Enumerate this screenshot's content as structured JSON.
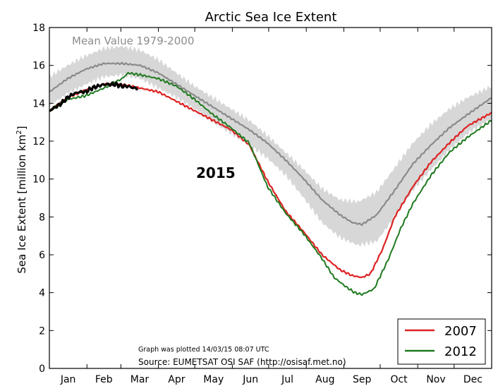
{
  "chart_data": {
    "type": "line",
    "title": "Arctic Sea Ice Extent",
    "ylabel": "Sea Ice Extent [million km",
    "ylabel_sup": "2",
    "ylabel_close": "]",
    "xlabel": "",
    "ylim": [
      0,
      18
    ],
    "yticks": [
      0,
      2,
      4,
      6,
      8,
      10,
      12,
      14,
      16,
      18
    ],
    "xlim": [
      0,
      365
    ],
    "months": [
      "Jan",
      "Feb",
      "Mar",
      "Apr",
      "May",
      "Jun",
      "Jul",
      "Aug",
      "Sep",
      "Oct",
      "Nov",
      "Dec"
    ],
    "grid": false,
    "legend_position": "bottom-right",
    "colors": {
      "band": "#d7d7d7",
      "mean": "#8a8a8a",
      "y2007": "#dd2222",
      "y2012": "#1f7a1f",
      "y2015": "#000000"
    },
    "annotations": {
      "mean_label": "Mean Value 1979-2000",
      "year_label": "2015",
      "plotted": "Graph was plotted 14/03/15 08:07 UTC",
      "source": "Source: EUMETSAT OSI SAF (http://osisaf.met.no)"
    },
    "legend": [
      {
        "label": "2007",
        "color": "#dd2222"
      },
      {
        "label": "2012",
        "color": "#1f7a1f"
      }
    ],
    "band_upper": {
      "x": [
        0,
        15,
        30,
        45,
        60,
        75,
        90,
        105,
        120,
        135,
        150,
        165,
        180,
        195,
        210,
        225,
        240,
        255,
        270,
        285,
        300,
        315,
        330,
        345,
        365
      ],
      "y": [
        15.4,
        16.0,
        16.5,
        16.9,
        17.0,
        16.8,
        16.3,
        15.6,
        14.9,
        14.3,
        13.7,
        13.1,
        12.3,
        11.4,
        10.5,
        9.5,
        8.9,
        8.8,
        9.3,
        10.6,
        11.9,
        12.9,
        13.7,
        14.3,
        14.9
      ]
    },
    "band_lower": {
      "x": [
        0,
        15,
        30,
        45,
        60,
        75,
        90,
        105,
        120,
        135,
        150,
        165,
        180,
        195,
        210,
        225,
        240,
        255,
        270,
        285,
        300,
        315,
        330,
        345,
        365
      ],
      "y": [
        13.9,
        14.5,
        15.0,
        15.4,
        15.5,
        15.3,
        14.8,
        14.3,
        13.7,
        13.0,
        12.4,
        11.8,
        11.1,
        10.2,
        9.0,
        7.7,
        6.9,
        6.5,
        6.7,
        8.0,
        9.4,
        10.5,
        11.5,
        12.4,
        13.2
      ]
    },
    "series": [
      {
        "name": "Mean Value 1979-2000",
        "key": "mean",
        "x": [
          0,
          15,
          30,
          45,
          60,
          75,
          90,
          105,
          120,
          135,
          150,
          165,
          180,
          195,
          210,
          225,
          240,
          250,
          258,
          270,
          285,
          300,
          315,
          330,
          345,
          365
        ],
        "y": [
          14.6,
          15.3,
          15.8,
          16.1,
          16.1,
          16.0,
          15.6,
          15.0,
          14.4,
          13.8,
          13.2,
          12.6,
          11.9,
          11.0,
          10.0,
          8.9,
          8.1,
          7.7,
          7.6,
          8.1,
          9.4,
          10.8,
          11.8,
          12.7,
          13.4,
          14.3
        ]
      },
      {
        "name": "2007",
        "key": "y2007",
        "x": [
          0,
          15,
          30,
          45,
          60,
          75,
          90,
          105,
          120,
          135,
          150,
          165,
          180,
          195,
          210,
          225,
          240,
          250,
          258,
          265,
          275,
          285,
          300,
          315,
          330,
          345,
          365
        ],
        "y": [
          13.6,
          14.3,
          14.7,
          15.0,
          15.0,
          14.8,
          14.6,
          14.1,
          13.6,
          13.1,
          12.6,
          11.8,
          9.9,
          8.3,
          7.2,
          6.0,
          5.2,
          4.9,
          4.8,
          5.0,
          6.3,
          8.0,
          9.6,
          10.9,
          11.9,
          12.8,
          13.5
        ]
      },
      {
        "name": "2012",
        "key": "y2012",
        "x": [
          0,
          15,
          30,
          45,
          60,
          65,
          75,
          90,
          105,
          120,
          135,
          150,
          165,
          180,
          195,
          210,
          225,
          235,
          245,
          252,
          258,
          268,
          280,
          290,
          300,
          315,
          330,
          345,
          365
        ],
        "y": [
          13.6,
          14.2,
          14.4,
          14.8,
          15.3,
          15.6,
          15.5,
          15.3,
          14.9,
          14.2,
          13.4,
          12.7,
          11.9,
          9.6,
          8.2,
          7.1,
          5.8,
          4.8,
          4.3,
          4.0,
          3.9,
          4.2,
          5.8,
          7.4,
          8.7,
          10.2,
          11.4,
          12.2,
          13.1
        ]
      },
      {
        "name": "2015",
        "key": "y2015",
        "x": [
          0,
          5,
          10,
          15,
          20,
          25,
          30,
          35,
          40,
          45,
          50,
          55,
          60,
          65,
          70,
          73
        ],
        "y": [
          13.6,
          13.8,
          14.0,
          14.3,
          14.5,
          14.6,
          14.6,
          14.8,
          14.9,
          15.0,
          15.0,
          15.0,
          14.9,
          14.9,
          14.8,
          14.8
        ]
      }
    ]
  }
}
